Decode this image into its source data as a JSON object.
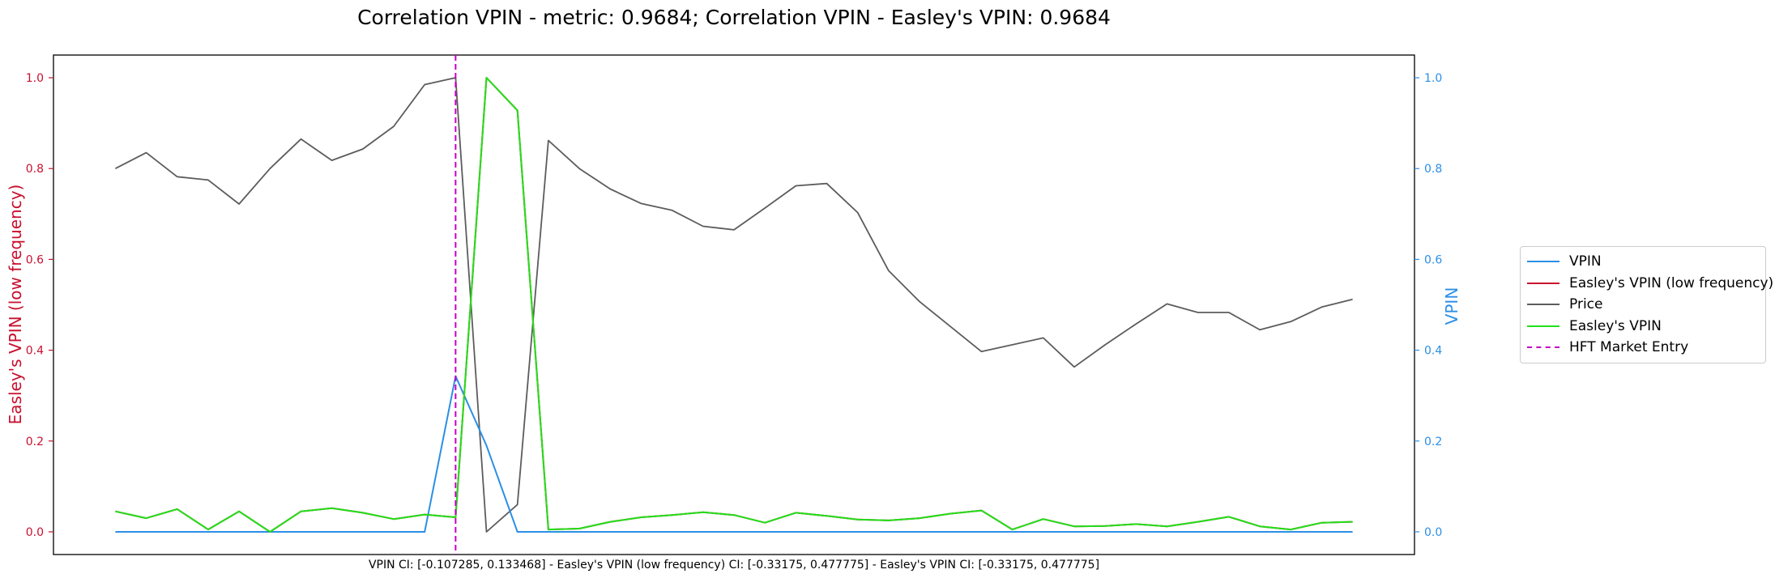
{
  "chart_data": {
    "type": "line",
    "title": "Correlation VPIN - metric: 0.9684; Correlation VPIN - Easley's VPIN: 0.9684",
    "xlabel": "VPIN CI: [-0.107285, 0.133468] - Easley's VPIN (low frequency) CI: [-0.33175, 0.477775] - Easley's VPIN CI: [-0.33175, 0.477775]",
    "ylabel_left": "Easley's VPIN (low frequency)",
    "ylabel_right": "VPIN",
    "ylim_left": [
      -0.05,
      1.05
    ],
    "ylim_right": [
      -0.05,
      1.05
    ],
    "xlim": [
      -2,
      42
    ],
    "left_ticks": [
      "0.0",
      "0.2",
      "0.4",
      "0.6",
      "0.8",
      "1.0"
    ],
    "right_ticks": [
      "0.0",
      "0.2",
      "0.4",
      "0.6",
      "0.8",
      "1.0"
    ],
    "grid": false,
    "legend_position": "outside-right",
    "x": [
      0,
      1,
      2,
      3,
      4,
      5,
      6,
      7,
      8,
      9,
      10,
      11,
      12,
      13,
      14,
      15,
      16,
      17,
      18,
      19,
      20,
      21,
      22,
      23,
      24,
      25,
      26,
      27,
      28,
      29,
      30,
      31,
      32,
      33,
      34,
      35,
      36,
      37,
      38,
      39,
      40
    ],
    "series": [
      {
        "name": "VPIN",
        "axis": "right",
        "color": "#2b8fe6",
        "dash": false,
        "values": [
          0,
          0,
          0,
          0,
          0,
          0,
          0,
          0,
          0,
          0,
          0,
          0.343,
          0.19,
          0,
          0,
          0,
          0,
          0,
          0,
          0,
          0,
          0,
          0,
          0,
          0,
          0,
          0,
          0,
          0,
          0,
          0,
          0,
          0,
          0,
          0,
          0,
          0,
          0,
          0,
          0,
          0
        ]
      },
      {
        "name": "Easley's VPIN (low frequency)",
        "axis": "left",
        "color": "#c8102e",
        "dash": false,
        "values": [
          0.045,
          0.03,
          0.05,
          0.005,
          0.045,
          0,
          0.045,
          0.052,
          0.042,
          0.028,
          0.038,
          0.032,
          1.0,
          0.928,
          0.005,
          0.007,
          0.022,
          0.032,
          0.037,
          0.043,
          0.037,
          0.02,
          0.042,
          0.035,
          0.027,
          0.025,
          0.03,
          0.04,
          0.047,
          0.005,
          0.028,
          0.012,
          0.013,
          0.017,
          0.012,
          0.022,
          0.033,
          0.012,
          0.005,
          0.02,
          0.022
        ]
      },
      {
        "name": "Price",
        "axis": "left",
        "color": "#5c5c5c",
        "dash": false,
        "values": [
          0.8,
          0.835,
          0.782,
          0.775,
          0.722,
          0.8,
          0.865,
          0.818,
          0.843,
          0.893,
          0.985,
          1.0,
          0,
          0.06,
          0.862,
          0.8,
          0.755,
          0.723,
          0.708,
          0.673,
          0.665,
          0.713,
          0.762,
          0.767,
          0.703,
          0.575,
          0.507,
          0.452,
          0.397,
          0.412,
          0.427,
          0.363,
          0.412,
          0.458,
          0.502,
          0.483,
          0.483,
          0.445,
          0.463,
          0.495,
          0.512
        ]
      },
      {
        "name": "Easley's VPIN",
        "axis": "left",
        "color": "#22e01a",
        "dash": false,
        "values": [
          0.045,
          0.03,
          0.05,
          0.005,
          0.045,
          0,
          0.045,
          0.052,
          0.042,
          0.028,
          0.038,
          0.032,
          1.0,
          0.928,
          0.005,
          0.007,
          0.022,
          0.032,
          0.037,
          0.043,
          0.037,
          0.02,
          0.042,
          0.035,
          0.027,
          0.025,
          0.03,
          0.04,
          0.047,
          0.005,
          0.028,
          0.012,
          0.013,
          0.017,
          0.012,
          0.022,
          0.033,
          0.012,
          0.005,
          0.02,
          0.022
        ]
      },
      {
        "name": "HFT Market Entry",
        "axis": "left",
        "color": "#c400c4",
        "dash": true,
        "vertical_x": 11
      }
    ]
  }
}
